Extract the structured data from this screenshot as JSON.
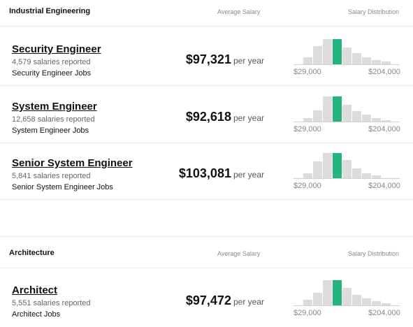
{
  "sections": [
    {
      "title": "Industrial Engineering",
      "avg_label": "Average Salary",
      "dist_label": "Salary Distribution",
      "jobs": [
        {
          "title": "Security Engineer",
          "count": "4,579 salaries reported",
          "link": "Security Engineer Jobs",
          "salary": "$97,321",
          "unit": "per year",
          "range_min": "$29,000",
          "range_max": "$204,000",
          "distribution": [
            0.28,
            0.72,
            1.0,
            1.0,
            0.68,
            0.45,
            0.28,
            0.18,
            0.1
          ],
          "highlight_index": 3
        },
        {
          "title": "System Engineer",
          "count": "12,658 salaries reported",
          "link": "System Engineer Jobs",
          "salary": "$92,618",
          "unit": "per year",
          "range_min": "$29,000",
          "range_max": "$204,000",
          "distribution": [
            0.14,
            0.44,
            1.0,
            1.0,
            0.66,
            0.42,
            0.28,
            0.14,
            0.06
          ],
          "highlight_index": 3
        },
        {
          "title": "Senior System Engineer",
          "count": "5,841 salaries reported",
          "link": "Senior System Engineer Jobs",
          "salary": "$103,081",
          "unit": "per year",
          "range_min": "$29,000",
          "range_max": "$204,000",
          "distribution": [
            0.2,
            0.66,
            1.0,
            1.0,
            0.72,
            0.4,
            0.2,
            0.1
          ],
          "highlight_index": 3
        }
      ]
    },
    {
      "title": "Architecture",
      "avg_label": "Average Salary",
      "dist_label": "Salary Distribution",
      "jobs": [
        {
          "title": "Architect",
          "count": "5,551 salaries reported",
          "link": "Architect Jobs",
          "salary": "$97,472",
          "unit": "per year",
          "range_min": "$29,000",
          "range_max": "$204,000",
          "distribution": [
            0.22,
            0.5,
            1.0,
            1.0,
            0.7,
            0.42,
            0.28,
            0.18,
            0.08
          ],
          "highlight_index": 3
        }
      ]
    }
  ],
  "colors": {
    "highlight": "#24b47e",
    "bar": "#dcdcdc"
  }
}
